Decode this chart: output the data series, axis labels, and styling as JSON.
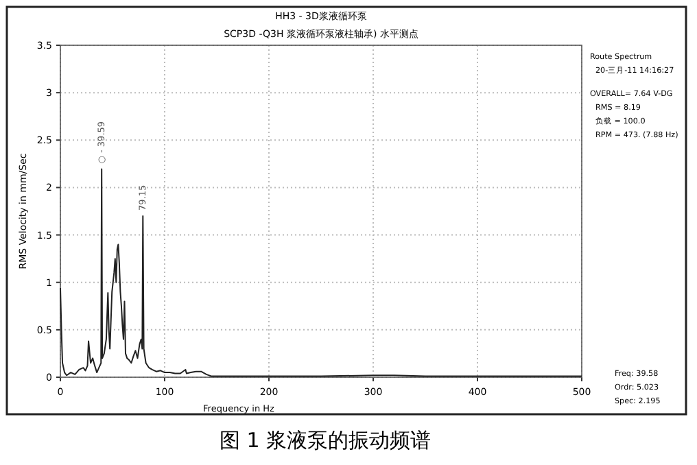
{
  "chart_data": {
    "type": "line",
    "title": "HH3 - 3D浆液循环泵",
    "subtitle": "SCP3D   -Q3H  浆液循环泵液柱轴承)  水平测点",
    "xlabel": "Frequency in Hz",
    "ylabel": "RMS Velocity in mm/Sec",
    "x": [
      0,
      1,
      2,
      4,
      6,
      10,
      14,
      18,
      22,
      24,
      26,
      27,
      29,
      31,
      33,
      35,
      37,
      39,
      39.59,
      40.2,
      42,
      44,
      45.6,
      46.5,
      47.5,
      48.5,
      49.5,
      50.5,
      51.5,
      52.5,
      53.5,
      54.5,
      55.5,
      56.5,
      57.5,
      58.5,
      59.5,
      60.5,
      61.5,
      62.5,
      64,
      66,
      68,
      70,
      72,
      74,
      76,
      77.5,
      78.5,
      79.15,
      80,
      82,
      85,
      88,
      92,
      96,
      100,
      105,
      110,
      115,
      120,
      121,
      125,
      130,
      135,
      140,
      145,
      150,
      200,
      250,
      300,
      320,
      350,
      400,
      450,
      500
    ],
    "series": [
      {
        "color": "#222222",
        "values": [
          0.94,
          0.5,
          0.15,
          0.05,
          0.02,
          0.05,
          0.03,
          0.08,
          0.1,
          0.07,
          0.12,
          0.38,
          0.15,
          0.2,
          0.12,
          0.05,
          0.1,
          0.15,
          2.195,
          0.2,
          0.25,
          0.4,
          0.89,
          0.5,
          0.3,
          0.6,
          0.9,
          1.0,
          1.1,
          1.25,
          1.0,
          1.35,
          1.4,
          1.2,
          0.9,
          0.75,
          0.55,
          0.4,
          0.8,
          0.25,
          0.2,
          0.18,
          0.15,
          0.22,
          0.28,
          0.2,
          0.35,
          0.4,
          0.3,
          1.7,
          0.3,
          0.15,
          0.1,
          0.08,
          0.06,
          0.07,
          0.05,
          0.05,
          0.04,
          0.04,
          0.08,
          0.04,
          0.05,
          0.06,
          0.06,
          0.03,
          0.01,
          0.01,
          0.01,
          0.01,
          0.02,
          0.02,
          0.01,
          0.01,
          0.01,
          0.01
        ]
      }
    ],
    "xlim": [
      0,
      500
    ],
    "ylim": [
      0,
      3.5
    ],
    "xticks": [
      0,
      100,
      200,
      300,
      400,
      500
    ],
    "yticks": [
      0,
      0.5,
      1,
      1.5,
      2,
      2.5,
      3,
      3.5
    ],
    "grid": true,
    "annotations": [
      {
        "text": "○ - 39.59",
        "x": 39.59,
        "y": 2.195
      },
      {
        "text": "79.15",
        "x": 79.15,
        "y": 1.7
      },
      "Route Spectrum",
      "20-三月-11 14:16:27",
      "OVERALL= 7.64 V-DG",
      "RMS = 8.19",
      "负载 = 100.0",
      "RPM = 473. (7.88 Hz)",
      "Freq:  39.58",
      "Ordr:  5.023",
      "Spec:  2.195",
      "图 1   浆液泵的振动频谱"
    ]
  }
}
